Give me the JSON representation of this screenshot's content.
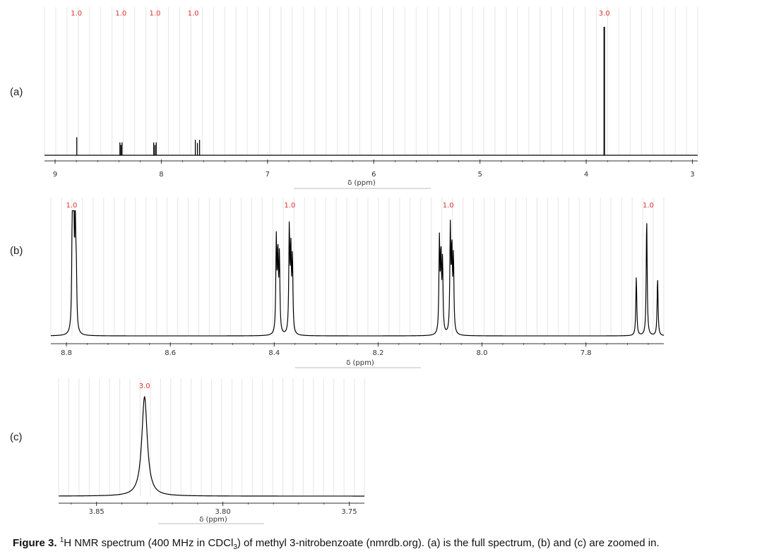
{
  "caption": {
    "label": "Figure 3",
    "sup": "1",
    "before_sub": "H NMR spectrum (400 MHz in CDCl",
    "sub": "3",
    "after_sub": ") of methyl 3-nitrobenzoate (nmrdb.org). (a) is the full spectrum, (b) and (c) are zoomed in."
  },
  "colors": {
    "trace": "#000000",
    "grid": "#e6e6e6",
    "integration": "#e03030",
    "axis": "#333333"
  },
  "chart_data": [
    {
      "panel_label": "(a)",
      "type": "line",
      "xlabel": "δ (ppm)",
      "ylabel": "",
      "xlim": [
        9.1,
        2.95
      ],
      "reversed_x": true,
      "grid": true,
      "ticks": [
        9,
        8,
        7,
        6,
        5,
        4,
        3
      ],
      "peaks": [
        {
          "ppm": 8.8,
          "height": 0.14,
          "lines": [
            0.004
          ]
        },
        {
          "ppm": 8.38,
          "height": 0.1,
          "lines": [
            -0.01,
            0.0,
            0.01
          ]
        },
        {
          "ppm": 8.06,
          "height": 0.1,
          "lines": [
            -0.012,
            0.0,
            0.012
          ]
        },
        {
          "ppm": 7.66,
          "height": 0.12,
          "lines": [
            -0.02,
            0.0,
            0.02
          ]
        },
        {
          "ppm": 3.83,
          "height": 1.0,
          "lines": [
            0
          ]
        }
      ],
      "integrals": [
        {
          "ppm": 8.8,
          "value": "1.0"
        },
        {
          "ppm": 8.38,
          "value": "1.0"
        },
        {
          "ppm": 8.06,
          "value": "1.0"
        },
        {
          "ppm": 7.7,
          "value": "1.0"
        },
        {
          "ppm": 3.83,
          "value": "3.0"
        }
      ]
    },
    {
      "panel_label": "(b)",
      "type": "line",
      "xlabel": "δ (ppm)",
      "ylabel": "",
      "xlim": [
        8.83,
        7.65
      ],
      "reversed_x": true,
      "grid": true,
      "ticks": [
        "8.8",
        "8.6",
        "8.4",
        "8.2",
        "8.0",
        "7.8"
      ],
      "multiplets": [
        {
          "ppm": 8.785,
          "lines": [
            [
              8.789,
              0.43
            ],
            [
              8.788,
              0.92
            ],
            [
              8.786,
              0.96
            ],
            [
              8.783,
              0.9
            ],
            [
              8.781,
              0.43
            ]
          ]
        },
        {
          "ppm": 8.375,
          "lines": [
            [
              8.396,
              0.78
            ],
            [
              8.393,
              0.63
            ],
            [
              8.39,
              0.63
            ],
            [
              8.371,
              0.87
            ],
            [
              8.368,
              0.66
            ],
            [
              8.365,
              0.61
            ]
          ]
        },
        {
          "ppm": 8.064,
          "lines": [
            [
              8.082,
              0.77
            ],
            [
              8.079,
              0.62
            ],
            [
              8.076,
              0.58
            ],
            [
              8.061,
              0.87
            ],
            [
              8.058,
              0.66
            ],
            [
              8.055,
              0.61
            ]
          ]
        },
        {
          "ppm": 7.683,
          "lines": [
            [
              7.703,
              0.49
            ],
            [
              7.683,
              0.98
            ],
            [
              7.662,
              0.48
            ]
          ]
        }
      ],
      "integrals": [
        {
          "ppm": 8.79,
          "value": "1.0"
        },
        {
          "ppm": 8.37,
          "value": "1.0"
        },
        {
          "ppm": 8.065,
          "value": "1.0"
        },
        {
          "ppm": 7.68,
          "value": "1.0"
        }
      ]
    },
    {
      "panel_label": "(c)",
      "type": "line",
      "xlabel": "δ (ppm)",
      "ylabel": "",
      "xlim": [
        3.865,
        3.744
      ],
      "reversed_x": true,
      "grid": true,
      "ticks": [
        "3.85",
        "3.80",
        "3.75"
      ],
      "peaks": [
        {
          "ppm": 3.831,
          "height": 1.0
        }
      ],
      "integrals": [
        {
          "ppm": 3.831,
          "value": "3.0"
        }
      ]
    }
  ]
}
